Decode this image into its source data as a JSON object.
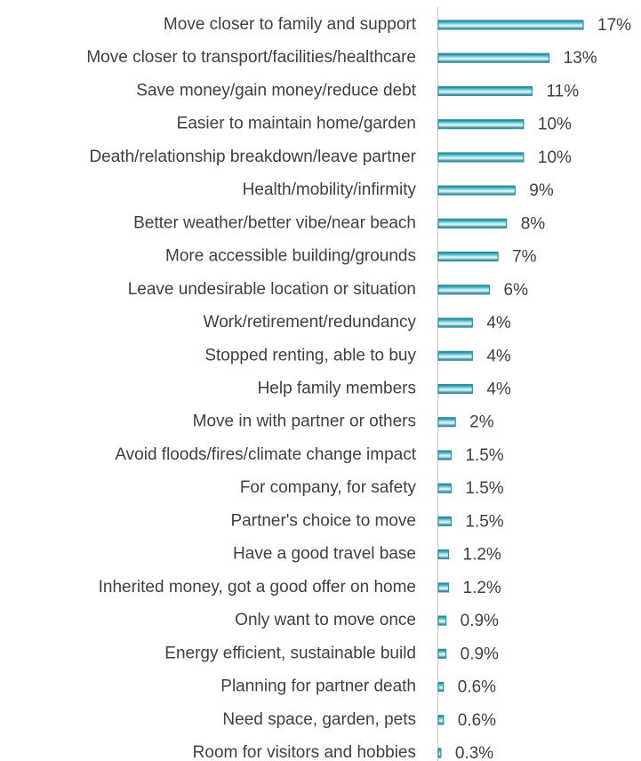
{
  "chart_data": {
    "type": "hbar",
    "categories": [
      "Move closer to family and support",
      "Move closer to transport/facilities/healthcare",
      "Save money/gain money/reduce debt",
      "Easier to maintain home/garden",
      "Death/relationship breakdown/leave partner",
      "Health/mobility/infirmity",
      "Better weather/better vibe/near beach",
      "More accessible building/grounds",
      "Leave undesirable location or situation",
      "Work/retirement/redundancy",
      "Stopped renting, able to buy",
      "Help family members",
      "Move in with partner or others",
      "Avoid floods/fires/climate change impact",
      "For company, for safety",
      "Partner's choice to move",
      "Have a good travel base",
      "Inherited money, got a good offer on home",
      "Only want to move once",
      "Energy efficient, sustainable build",
      "Planning for partner death",
      "Need space, garden, pets",
      "Room for visitors and hobbies"
    ],
    "values": [
      17,
      13,
      11,
      10,
      10,
      9,
      8,
      7,
      6,
      4,
      4,
      4,
      2,
      1.5,
      1.5,
      1.5,
      1.2,
      1.2,
      0.9,
      0.9,
      0.6,
      0.6,
      0.3
    ],
    "value_labels": [
      "17%",
      "13%",
      "11%",
      "10%",
      "10%",
      "9%",
      "8%",
      "7%",
      "6%",
      "4%",
      "4%",
      "4%",
      "2%",
      "1.5%",
      "1.5%",
      "1.5%",
      "1.2%",
      "1.2%",
      "0.9%",
      "0.9%",
      "0.6%",
      "0.6%",
      "0.3%"
    ],
    "color": "#2a94a3"
  }
}
